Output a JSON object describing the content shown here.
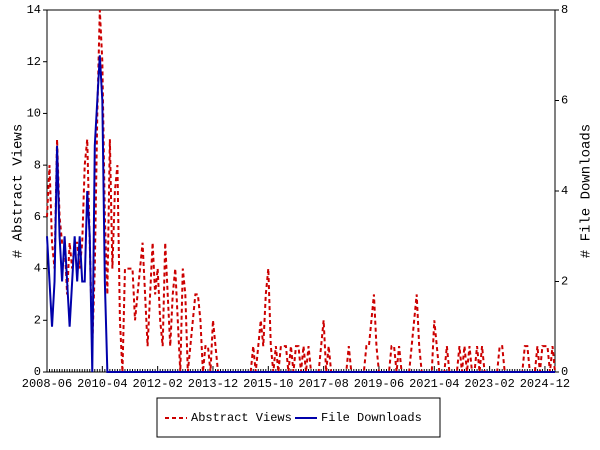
{
  "chart_data": {
    "type": "line",
    "x_label": null,
    "y_label": "# Abstract Views",
    "y2_label": "# File Downloads",
    "categories": [
      "2008-06",
      null,
      null,
      null,
      null,
      null,
      null,
      null,
      null,
      null,
      null,
      null,
      null,
      null,
      null,
      null,
      null,
      null,
      null,
      null,
      null,
      null,
      "2010-04",
      null,
      null,
      null,
      null,
      null,
      null,
      null,
      null,
      null,
      null,
      null,
      null,
      null,
      null,
      null,
      null,
      null,
      null,
      null,
      null,
      null,
      "2012-02",
      null,
      null,
      null,
      null,
      null,
      null,
      null,
      null,
      null,
      null,
      null,
      null,
      null,
      null,
      null,
      null,
      null,
      null,
      null,
      null,
      null,
      "2013-12",
      null,
      null,
      null,
      null,
      null,
      null,
      null,
      null,
      null,
      null,
      null,
      null,
      null,
      null,
      null,
      null,
      null,
      null,
      null,
      null,
      null,
      "2015-10",
      null,
      null,
      null,
      null,
      null,
      null,
      null,
      null,
      null,
      null,
      null,
      null,
      null,
      null,
      null,
      null,
      null,
      null,
      null,
      null,
      null,
      "2017-08",
      null,
      null,
      null,
      null,
      null,
      null,
      null,
      null,
      null,
      null,
      null,
      null,
      null,
      null,
      null,
      null,
      null,
      null,
      null,
      null,
      null,
      "2019-06",
      null,
      null,
      null,
      null,
      null,
      null,
      null,
      null,
      null,
      null,
      null,
      null,
      null,
      null,
      null,
      null,
      null,
      null,
      null,
      null,
      null,
      "2021-04",
      null,
      null,
      null,
      null,
      null,
      null,
      null,
      null,
      null,
      null,
      null,
      null,
      null,
      null,
      null,
      null,
      null,
      null,
      null,
      null,
      null,
      "2023-02",
      null,
      null,
      null,
      null,
      null,
      null,
      null,
      null,
      null,
      null,
      null,
      null,
      null,
      null,
      null,
      null,
      null,
      null,
      null,
      null,
      null,
      "2024-12",
      null,
      null,
      null,
      null
    ],
    "series": [
      {
        "name": "Abstract Views",
        "color": "#cc0000",
        "dash": true,
        "values": [
          6,
          8,
          5,
          4,
          9,
          6,
          5,
          5,
          3,
          5,
          4,
          5,
          5,
          4,
          5,
          8,
          9,
          5,
          1,
          4,
          10,
          14,
          12,
          6,
          3,
          9,
          4,
          7,
          8,
          2,
          0,
          4,
          4,
          4,
          4,
          2,
          3,
          4,
          5,
          3,
          1,
          3,
          5,
          3,
          4,
          2,
          1,
          5,
          3,
          1,
          3,
          4,
          2,
          0,
          4,
          3,
          0,
          1,
          2,
          3,
          3,
          2,
          0,
          1,
          1,
          0,
          2,
          1,
          0,
          0,
          0,
          0,
          0,
          0,
          0,
          0,
          0,
          0,
          0,
          0,
          0,
          0,
          1,
          0,
          1,
          2,
          1,
          3,
          4,
          1,
          0,
          1,
          0,
          1,
          1,
          1,
          0,
          1,
          0,
          1,
          1,
          0,
          1,
          0,
          1,
          0,
          0,
          0,
          0,
          1,
          2,
          0,
          1,
          0,
          0,
          0,
          0,
          0,
          0,
          0,
          1,
          0,
          0,
          0,
          0,
          0,
          0,
          1,
          1,
          2,
          3,
          1,
          0,
          0,
          0,
          0,
          0,
          1,
          1,
          0,
          1,
          0,
          0,
          0,
          0,
          1,
          2,
          3,
          1,
          0,
          0,
          0,
          0,
          0,
          2,
          1,
          0,
          0,
          0,
          1,
          0,
          0,
          0,
          0,
          1,
          0,
          1,
          0,
          1,
          0,
          0,
          1,
          0,
          1,
          0,
          0,
          0,
          0,
          0,
          0,
          1,
          1,
          0,
          0,
          0,
          0,
          0,
          0,
          0,
          0,
          1,
          1,
          0,
          0,
          0,
          1,
          0,
          1,
          1,
          1,
          0,
          1,
          0
        ]
      },
      {
        "name": "File Downloads",
        "color": "#0000aa",
        "dash": false,
        "axis": "y2",
        "values": [
          3,
          2,
          1,
          2,
          5,
          3,
          2,
          3,
          2,
          1,
          2,
          3,
          2,
          3,
          2,
          2,
          4,
          3,
          0,
          5,
          6,
          7,
          6,
          2,
          0,
          0,
          0,
          0,
          0,
          0,
          0,
          0,
          0,
          0,
          0,
          0,
          0,
          0,
          0,
          0,
          0,
          0,
          0,
          0,
          0,
          0,
          0,
          0,
          0,
          0,
          0,
          0,
          0,
          0,
          0,
          0,
          0,
          0,
          0,
          0,
          0,
          0,
          0,
          0,
          0,
          0,
          0,
          0,
          0,
          0,
          0,
          0,
          0,
          0,
          0,
          0,
          0,
          0,
          0,
          0,
          0,
          0,
          0,
          0,
          0,
          0,
          0,
          0,
          0,
          0,
          0,
          0,
          0,
          0,
          0,
          0,
          0,
          0,
          0,
          0,
          0,
          0,
          0,
          0,
          0,
          0,
          0,
          0,
          0,
          0,
          0,
          0,
          0,
          0,
          0,
          0,
          0,
          0,
          0,
          0,
          0,
          0,
          0,
          0,
          0,
          0,
          0,
          0,
          0,
          0,
          0,
          0,
          0,
          0,
          0,
          0,
          0,
          0,
          0,
          0,
          0,
          0,
          0,
          0,
          0,
          0,
          0,
          0,
          0,
          0,
          0,
          0,
          0,
          0,
          0,
          0,
          0,
          0,
          0,
          0,
          0,
          0,
          0,
          0,
          0,
          0,
          0,
          0,
          0,
          0,
          0,
          0,
          0,
          0,
          0,
          0,
          0,
          0,
          0,
          0,
          0,
          0,
          0,
          0,
          0,
          0,
          0,
          0,
          0,
          0,
          0,
          0,
          0,
          0,
          0,
          0,
          0,
          0,
          0,
          0,
          0,
          0,
          0
        ]
      }
    ],
    "ylim": [
      0,
      14
    ],
    "yticks": [
      0,
      2,
      4,
      6,
      8,
      10,
      12,
      14
    ],
    "y2lim": [
      0,
      8
    ],
    "y2ticks": [
      0,
      2,
      4,
      6,
      8
    ],
    "legend": "bottom"
  }
}
